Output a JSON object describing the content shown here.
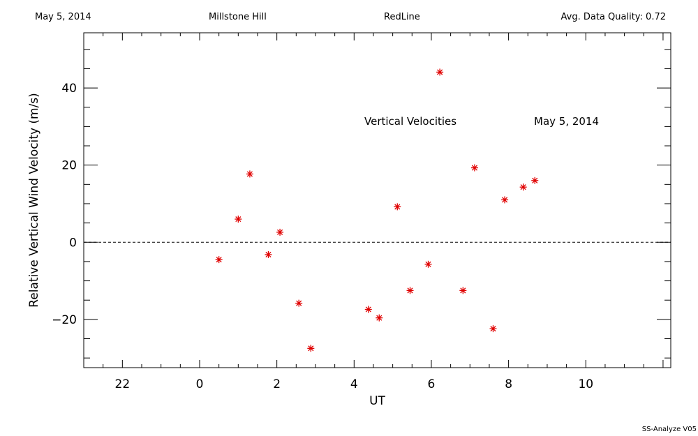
{
  "header": {
    "date": "May 5, 2014",
    "site": "Millstone Hill",
    "line": "RedLine",
    "quality": "Avg. Data Quality: 0.72"
  },
  "footer": "SS-Analyze V05",
  "chart_data": {
    "type": "scatter",
    "title": "",
    "annotations": [
      "Vertical Velocities",
      "May 5, 2014"
    ],
    "xlabel": "UT",
    "ylabel": "Relative Vertical Wind Velocity (m/s)",
    "xlim": [
      -3.0,
      12.2
    ],
    "ylim": [
      -32.5,
      54.3
    ],
    "x_ticks": [
      22,
      0,
      2,
      4,
      6,
      8,
      10
    ],
    "y_ticks": [
      -20,
      0,
      20,
      40
    ],
    "marker": "asterisk",
    "marker_color": "#e00000",
    "zero_line": "dashed",
    "grid": false,
    "series": [
      {
        "x": [
          0.5,
          1.0,
          1.3,
          1.78,
          2.08,
          2.57,
          2.88,
          4.37,
          4.65,
          5.12,
          5.45,
          5.92,
          6.22,
          6.82,
          7.12,
          7.6,
          7.9,
          8.38,
          8.68
        ],
        "y": [
          -4.5,
          6.0,
          17.7,
          -3.2,
          2.6,
          -15.8,
          -27.5,
          -17.4,
          -19.6,
          9.2,
          -12.5,
          -5.7,
          44.1,
          -12.5,
          19.3,
          -22.4,
          11.0,
          14.3,
          16.0
        ]
      }
    ]
  }
}
